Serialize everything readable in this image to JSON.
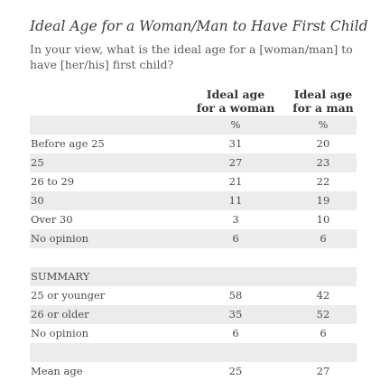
{
  "title": "Ideal Age for a Woman/Man to Have First Child",
  "subtitle": "In your view, what is the ideal age for a [woman/man] to have [her/his] first child?",
  "columns": [
    {
      "line1": "Ideal age",
      "line2": "for a woman"
    },
    {
      "line1": "Ideal age",
      "line2": "for a man"
    }
  ],
  "chart_data": {
    "type": "table",
    "title": "Ideal Age for a Woman/Man to Have First Child",
    "unit_row": [
      "%",
      "%"
    ],
    "series": [
      {
        "name": "Ideal age for a woman",
        "values": [
          31,
          27,
          21,
          11,
          3,
          6,
          58,
          35,
          6,
          25
        ]
      },
      {
        "name": "Ideal age for a man",
        "values": [
          20,
          23,
          22,
          19,
          10,
          6,
          42,
          52,
          6,
          27
        ]
      }
    ],
    "rows": [
      {
        "label": "",
        "woman": "%",
        "man": "%"
      },
      {
        "label": "Before age 25",
        "woman": "31",
        "man": "20"
      },
      {
        "label": "25",
        "woman": "27",
        "man": "23"
      },
      {
        "label": "26 to 29",
        "woman": "21",
        "man": "22"
      },
      {
        "label": "30",
        "woman": "11",
        "man": "19"
      },
      {
        "label": "Over 30",
        "woman": "3",
        "man": "10"
      },
      {
        "label": "No opinion",
        "woman": "6",
        "man": "6"
      },
      {
        "label": "",
        "woman": "",
        "man": ""
      },
      {
        "label": "SUMMARY",
        "woman": "",
        "man": ""
      },
      {
        "label": "25 or younger",
        "woman": "58",
        "man": "42"
      },
      {
        "label": "26 or older",
        "woman": "35",
        "man": "52"
      },
      {
        "label": "No opinion",
        "woman": "6",
        "man": "6"
      },
      {
        "label": "",
        "woman": "",
        "man": ""
      },
      {
        "label": "Mean age",
        "woman": "25",
        "man": "27"
      }
    ]
  },
  "colors": {
    "shade": "#ececec",
    "text": "#4a4a4a",
    "header": "#333333"
  }
}
